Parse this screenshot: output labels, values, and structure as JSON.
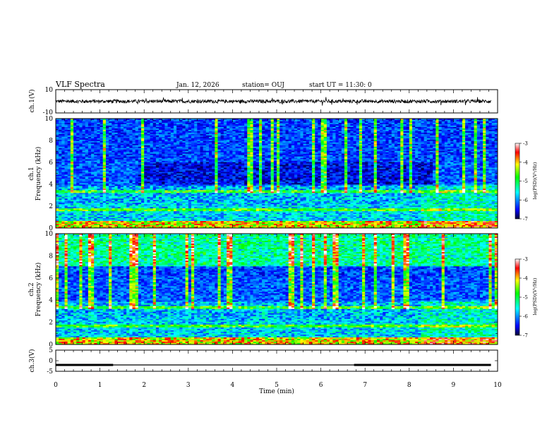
{
  "header": {
    "title": "VLF Spectra",
    "date": "Jan. 12, 2026",
    "station": "station= OUJ",
    "start": "start UT =  11:30: 0"
  },
  "chart_data": [
    {
      "id": "ch1-waveform",
      "type": "line",
      "ylabel": "ch.1(V)",
      "ylim": [
        -10,
        10
      ],
      "y_ticks": [
        "10",
        "-10"
      ],
      "trace": {
        "baseline": 0,
        "typical_amplitude": 1.5,
        "x_range": [
          0,
          9.85
        ]
      }
    },
    {
      "id": "ch1-spectrogram",
      "type": "heatmap",
      "ylabel": "Frequency (kHz)",
      "channel_label": "ch.1",
      "ylim": [
        0,
        10
      ],
      "y_ticks": [
        "0",
        "2",
        "4",
        "6",
        "8",
        "10"
      ],
      "colorbar": {
        "label": "log(PSD)(V²/Hz)",
        "range": [
          -7,
          -3
        ],
        "ticks": [
          "-3",
          "-4",
          "-5",
          "-6",
          "-7"
        ]
      }
    },
    {
      "id": "ch2-spectrogram",
      "type": "heatmap",
      "ylabel": "Frequency (kHz)",
      "channel_label": "ch.2",
      "ylim": [
        0,
        10
      ],
      "y_ticks": [
        "0",
        "2",
        "4",
        "6",
        "8",
        "10"
      ],
      "colorbar": {
        "label": "log(PSD)(V²/Hz)",
        "range": [
          -7,
          -3
        ],
        "ticks": [
          "-3",
          "-4",
          "-5",
          "-6",
          "-7"
        ]
      }
    },
    {
      "id": "ch3-waveform",
      "type": "line",
      "ylabel": "ch.3(V)",
      "ylim": [
        -5,
        5
      ],
      "y_ticks": [
        "5",
        "0",
        "-5"
      ],
      "segments": [
        {
          "x": [
            0.0,
            1.3
          ],
          "y": -2.0,
          "thick": true
        },
        {
          "x": [
            1.3,
            6.75
          ],
          "y": -2.0,
          "thick": false
        },
        {
          "x": [
            6.75,
            9.85
          ],
          "y": -2.0,
          "thick": true
        }
      ]
    }
  ],
  "x_axis": {
    "label": "Time (min)",
    "range": [
      0,
      10
    ],
    "ticks": [
      "0",
      "1",
      "2",
      "3",
      "4",
      "5",
      "6",
      "7",
      "8",
      "9",
      "10"
    ]
  },
  "colors": {
    "background": "#ffffff",
    "axis": "#000000",
    "colormap": [
      "#000033",
      "#0000ff",
      "#00ffff",
      "#00ff00",
      "#ffff00",
      "#ff0000",
      "#ffffff"
    ]
  }
}
